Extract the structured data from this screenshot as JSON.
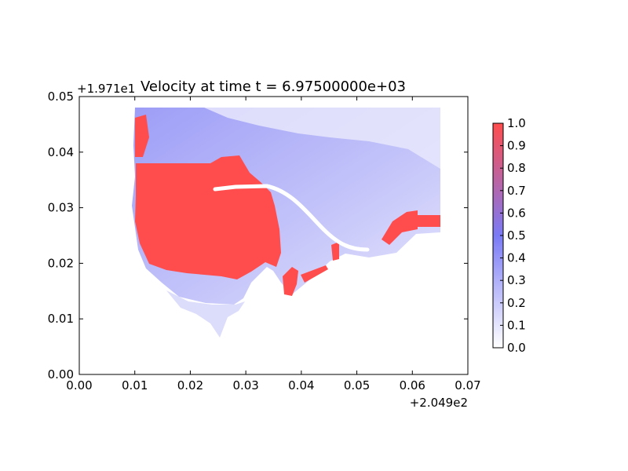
{
  "chart_data": {
    "type": "heatmap",
    "title": "Velocity at time t = 6.97500000e+03",
    "xlabel": "",
    "ylabel": "",
    "x_offset_label": "+2.049e2",
    "y_offset_label": "+1.971e1",
    "xlim": [
      0.0,
      0.07
    ],
    "ylim": [
      0.0,
      0.05
    ],
    "x_ticks": [
      "0.00",
      "0.01",
      "0.02",
      "0.03",
      "0.04",
      "0.05",
      "0.06",
      "0.07"
    ],
    "y_ticks": [
      "0.00",
      "0.01",
      "0.02",
      "0.03",
      "0.04",
      "0.05"
    ],
    "colorbar": {
      "min": 0.0,
      "max": 1.0,
      "ticks": [
        "0.0",
        "0.1",
        "0.2",
        "0.3",
        "0.4",
        "0.5",
        "0.6",
        "0.7",
        "0.8",
        "0.9",
        "1.0"
      ],
      "colors": [
        "#ffffff",
        "#7a7af6",
        "#ff4d4d"
      ]
    },
    "grid": false,
    "legend": "none"
  }
}
